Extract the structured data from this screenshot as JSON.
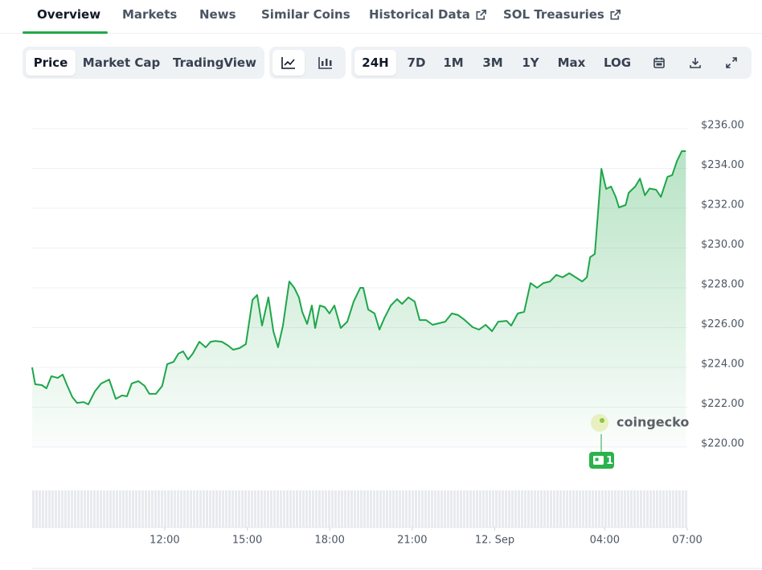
{
  "tabs": [
    "Overview",
    "Markets",
    "News",
    "Similar Coins",
    "Historical Data",
    "SOL Treasuries"
  ],
  "toolbar": {
    "views": [
      "Price",
      "Market Cap",
      "TradingView"
    ],
    "ranges": [
      "24H",
      "7D",
      "1M",
      "3M",
      "1Y",
      "Max",
      "LOG"
    ]
  },
  "chart_data": {
    "type": "line",
    "color": "#1ea64a",
    "x": [
      7.18,
      7.29,
      7.53,
      7.7,
      7.88,
      8.11,
      8.29,
      8.46,
      8.64,
      8.81,
      9.05,
      9.22,
      9.46,
      9.69,
      9.98,
      10.22,
      10.45,
      10.63,
      10.8,
      11.04,
      11.27,
      11.44,
      11.68,
      11.91,
      12.09,
      12.32,
      12.5,
      12.67,
      12.85,
      13.02,
      13.26,
      13.49,
      13.67,
      13.84,
      14.08,
      14.31,
      14.49,
      14.72,
      14.95,
      15.19,
      15.36,
      15.54,
      15.77,
      15.95,
      16.12,
      16.3,
      16.53,
      16.71,
      16.88,
      17.0,
      17.18,
      17.35,
      17.47,
      17.64,
      17.82,
      17.99,
      18.17,
      18.4,
      18.64,
      18.87,
      19.11,
      19.22,
      19.4,
      19.63,
      19.81,
      19.98,
      20.22,
      20.45,
      20.63,
      20.86,
      21.09,
      21.27,
      21.5,
      21.74,
      21.97,
      22.2,
      22.44,
      22.67,
      22.91,
      23.2,
      23.43,
      23.67,
      23.9,
      24.13,
      24.43,
      24.6,
      24.84,
      25.07,
      25.3,
      25.54,
      25.77,
      26.01,
      26.24,
      26.47,
      26.71,
      26.94,
      27.18,
      27.35,
      27.47,
      27.64,
      27.88,
      28.05,
      28.23,
      28.4,
      28.52,
      28.76,
      28.87,
      29.11,
      29.28,
      29.46,
      29.63,
      29.87,
      30.04,
      30.28,
      30.45,
      30.63,
      30.8,
      30.95
    ],
    "values": [
      224.0,
      223.15,
      223.11,
      222.95,
      223.56,
      223.47,
      223.64,
      223.07,
      222.51,
      222.22,
      222.26,
      222.14,
      222.79,
      223.19,
      223.39,
      222.42,
      222.59,
      222.55,
      223.19,
      223.31,
      223.07,
      222.67,
      222.67,
      223.07,
      224.16,
      224.28,
      224.69,
      224.81,
      224.4,
      224.69,
      225.29,
      225.01,
      225.29,
      225.33,
      225.29,
      225.09,
      224.89,
      224.97,
      225.17,
      227.39,
      227.64,
      226.1,
      227.52,
      225.82,
      225.01,
      226.1,
      228.32,
      228.0,
      227.52,
      226.79,
      226.18,
      227.11,
      225.98,
      227.11,
      227.03,
      226.71,
      227.11,
      225.98,
      226.3,
      227.31,
      228.0,
      228.0,
      226.91,
      226.71,
      225.9,
      226.46,
      227.11,
      227.43,
      227.19,
      227.52,
      227.31,
      226.38,
      226.38,
      226.14,
      226.22,
      226.3,
      226.71,
      226.63,
      226.38,
      226.02,
      225.9,
      226.14,
      225.82,
      226.3,
      226.34,
      226.1,
      226.71,
      226.79,
      228.24,
      228.0,
      228.24,
      228.32,
      228.65,
      228.53,
      228.73,
      228.53,
      228.32,
      228.53,
      229.54,
      229.7,
      233.98,
      232.97,
      233.09,
      232.57,
      232.04,
      232.16,
      232.77,
      233.09,
      233.49,
      232.65,
      232.99,
      232.93,
      232.57,
      233.58,
      233.66,
      234.38,
      234.87,
      234.87
    ],
    "xlim": [
      7.18,
      31.0
    ],
    "ylim": [
      220,
      236
    ],
    "xticks": [
      {
        "value": 12,
        "label": "12:00"
      },
      {
        "value": 15,
        "label": "15:00"
      },
      {
        "value": 18,
        "label": "18:00"
      },
      {
        "value": 21,
        "label": "21:00"
      },
      {
        "value": 24,
        "label": "12. Sep"
      },
      {
        "value": 28,
        "label": "04:00"
      },
      {
        "value": 31,
        "label": "07:00"
      }
    ],
    "yticks": [
      {
        "value": 220,
        "label": "$220.00"
      },
      {
        "value": 222,
        "label": "$222.00"
      },
      {
        "value": 224,
        "label": "$224.00"
      },
      {
        "value": 226,
        "label": "$226.00"
      },
      {
        "value": 228,
        "label": "$228.00"
      },
      {
        "value": 230,
        "label": "$230.00"
      },
      {
        "value": 232,
        "label": "$232.00"
      },
      {
        "value": 234,
        "label": "$234.00"
      },
      {
        "value": 236,
        "label": "$236.00"
      }
    ],
    "grid": true,
    "watermark": "coingecko",
    "event_count": 1
  }
}
